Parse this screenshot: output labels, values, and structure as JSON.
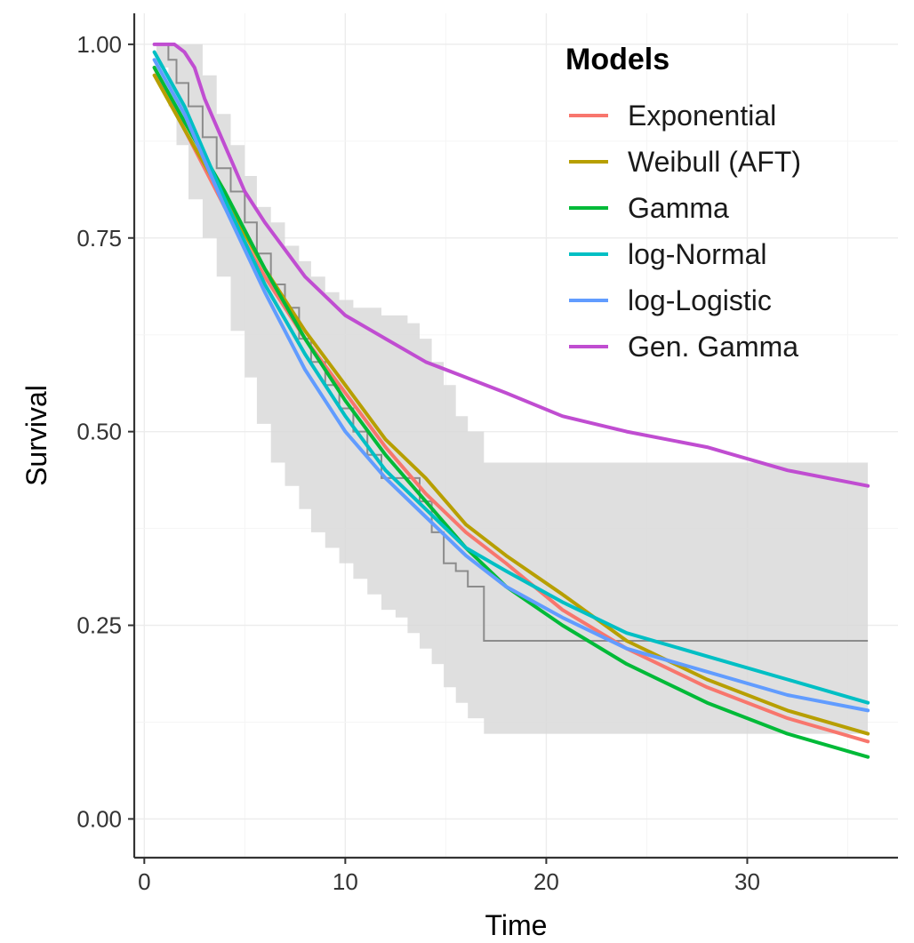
{
  "chart_data": {
    "type": "line",
    "xlabel": "Time",
    "ylabel": "Survival",
    "xlim": [
      -0.5,
      37.5
    ],
    "ylim": [
      -0.05,
      1.04
    ],
    "x_ticks": [
      0,
      10,
      20,
      30
    ],
    "x_tick_labels": [
      "0",
      "10",
      "20",
      "30"
    ],
    "y_ticks": [
      0,
      0.25,
      0.5,
      0.75,
      1.0
    ],
    "y_tick_labels": [
      "0.00",
      "0.25",
      "0.50",
      "0.75",
      "1.00"
    ],
    "legend_title": "Models",
    "legend_position": "top-right",
    "confidence_band": {
      "color": "#d9d9d9",
      "x": [
        0.6,
        1.2,
        1.6,
        2.2,
        2.9,
        3.6,
        4.3,
        5.0,
        5.6,
        6.3,
        7.0,
        7.7,
        8.3,
        9.0,
        9.7,
        10.4,
        11.1,
        11.8,
        12.5,
        13.1,
        13.7,
        14.3,
        14.9,
        15.5,
        16.1,
        16.9,
        20.8,
        36.0
      ],
      "upper": [
        1.0,
        1.0,
        1.0,
        1.0,
        0.96,
        0.91,
        0.87,
        0.83,
        0.79,
        0.77,
        0.74,
        0.72,
        0.7,
        0.68,
        0.67,
        0.66,
        0.66,
        0.65,
        0.65,
        0.64,
        0.62,
        0.59,
        0.56,
        0.52,
        0.5,
        0.46,
        0.46,
        0.46
      ],
      "lower": [
        0.97,
        0.92,
        0.87,
        0.8,
        0.75,
        0.7,
        0.63,
        0.57,
        0.51,
        0.46,
        0.43,
        0.4,
        0.37,
        0.35,
        0.33,
        0.31,
        0.29,
        0.27,
        0.26,
        0.24,
        0.22,
        0.2,
        0.17,
        0.15,
        0.13,
        0.11,
        0.11,
        0.11
      ]
    },
    "kaplan_meier": {
      "color": "#8c8c8c",
      "x": [
        0.6,
        1.2,
        1.6,
        2.2,
        2.9,
        3.6,
        4.3,
        5.0,
        5.6,
        6.3,
        7.0,
        7.7,
        8.3,
        9.0,
        9.7,
        10.4,
        11.1,
        11.8,
        12.5,
        13.1,
        13.7,
        14.3,
        14.9,
        15.5,
        16.1,
        16.9,
        36.0
      ],
      "y": [
        1.0,
        0.98,
        0.95,
        0.92,
        0.88,
        0.84,
        0.81,
        0.77,
        0.73,
        0.69,
        0.66,
        0.62,
        0.59,
        0.56,
        0.53,
        0.5,
        0.47,
        0.44,
        0.44,
        0.44,
        0.41,
        0.37,
        0.33,
        0.32,
        0.3,
        0.23,
        0.23
      ]
    },
    "series": [
      {
        "name": "Exponential",
        "color": "#f8766d",
        "x": [
          0.5,
          2,
          4,
          6,
          8,
          10,
          12,
          14,
          16,
          18,
          20.8,
          24,
          28,
          32,
          36
        ],
        "y": [
          0.97,
          0.89,
          0.79,
          0.7,
          0.62,
          0.55,
          0.48,
          0.42,
          0.37,
          0.33,
          0.27,
          0.22,
          0.17,
          0.13,
          0.1
        ]
      },
      {
        "name": "Weibull (AFT)",
        "color": "#b79f00",
        "x": [
          0.5,
          2,
          4,
          6,
          8,
          10,
          12,
          14,
          16,
          18,
          20.8,
          24,
          28,
          32,
          36
        ],
        "y": [
          0.96,
          0.89,
          0.8,
          0.71,
          0.63,
          0.56,
          0.49,
          0.44,
          0.38,
          0.34,
          0.29,
          0.23,
          0.18,
          0.14,
          0.11
        ]
      },
      {
        "name": "Gamma",
        "color": "#00ba38",
        "x": [
          0.5,
          2,
          4,
          6,
          8,
          10,
          12,
          14,
          16,
          18,
          20.8,
          24,
          28,
          32,
          36
        ],
        "y": [
          0.97,
          0.9,
          0.81,
          0.71,
          0.62,
          0.54,
          0.47,
          0.41,
          0.35,
          0.3,
          0.25,
          0.2,
          0.15,
          0.11,
          0.08
        ]
      },
      {
        "name": "log-Normal",
        "color": "#00bfc4",
        "x": [
          0.5,
          2,
          4,
          6,
          8,
          10,
          12,
          14,
          16,
          18,
          20.8,
          24,
          28,
          32,
          36
        ],
        "y": [
          0.99,
          0.92,
          0.8,
          0.69,
          0.6,
          0.52,
          0.45,
          0.4,
          0.35,
          0.32,
          0.28,
          0.24,
          0.21,
          0.18,
          0.15
        ]
      },
      {
        "name": "log-Logistic",
        "color": "#619cff",
        "x": [
          0.5,
          2,
          4,
          6,
          8,
          10,
          12,
          14,
          16,
          18,
          20.8,
          24,
          28,
          32,
          36
        ],
        "y": [
          0.98,
          0.91,
          0.79,
          0.68,
          0.58,
          0.5,
          0.44,
          0.39,
          0.34,
          0.3,
          0.26,
          0.22,
          0.19,
          0.16,
          0.14
        ]
      },
      {
        "name": "Gen. Gamma",
        "color": "#c04dd1",
        "x": [
          0.5,
          1.0,
          1.5,
          2.0,
          2.5,
          3,
          4,
          5,
          6,
          8,
          10,
          12,
          14,
          16,
          18,
          20.8,
          24,
          28,
          32,
          36
        ],
        "y": [
          1.0,
          1.0,
          1.0,
          0.99,
          0.97,
          0.93,
          0.87,
          0.81,
          0.77,
          0.7,
          0.65,
          0.62,
          0.59,
          0.57,
          0.55,
          0.52,
          0.5,
          0.48,
          0.45,
          0.43
        ]
      }
    ]
  }
}
